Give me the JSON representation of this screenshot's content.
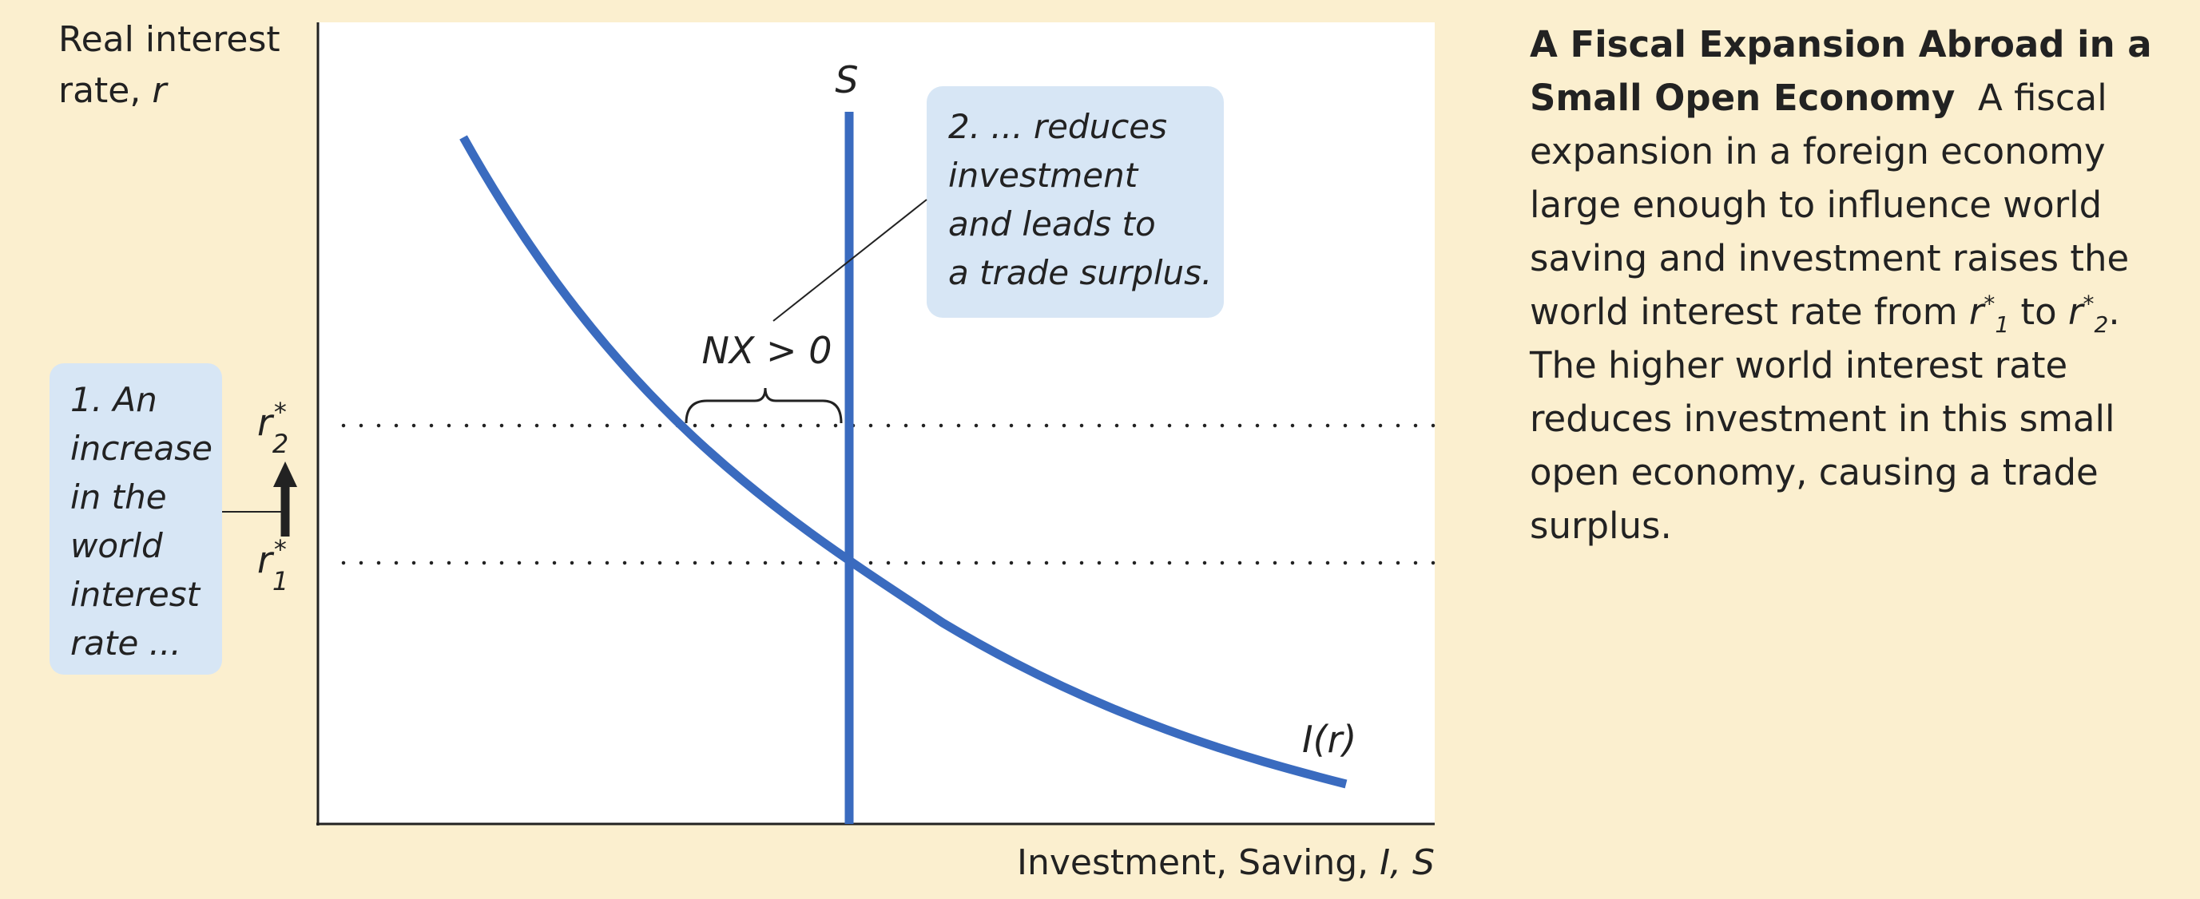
{
  "figure": {
    "y_axis_label_line1": "Real interest",
    "y_axis_label_line2_prefix": "rate, ",
    "y_axis_label_line2_var": "r",
    "x_axis_label_prefix": "Investment, Saving, ",
    "x_axis_label_vars": "I, S",
    "supply_curve_label": "S",
    "investment_curve_label": "I(r)",
    "nx_label": "NX > 0",
    "r_symbol": "r",
    "star": "*",
    "r1_sub": "1",
    "r2_sub": "2",
    "callout_1_lines": [
      "1. An",
      "increase",
      "in the",
      "world",
      "interest",
      "rate ..."
    ],
    "callout_2_lines": [
      "2. ... reduces",
      "investment",
      "and leads to",
      "a trade surplus."
    ],
    "colors": {
      "curve": "#3a6bbf",
      "callout_bg": "#d7e6f5",
      "background": "#fbefcf",
      "plot_bg": "#ffffff"
    }
  },
  "caption": {
    "title": "A Fiscal Expansion Abroad in a Small Open Economy",
    "body_part1": "A fiscal expansion in a foreign economy large enough to influence world saving and investment raises the world interest rate from ",
    "r_symbol": "r",
    "star": "*",
    "sub1": "1",
    "body_part2": " to ",
    "sub2": "2",
    "body_part3": ". The higher world interest rate reduces investment in this small open economy, causing a trade surplus."
  }
}
